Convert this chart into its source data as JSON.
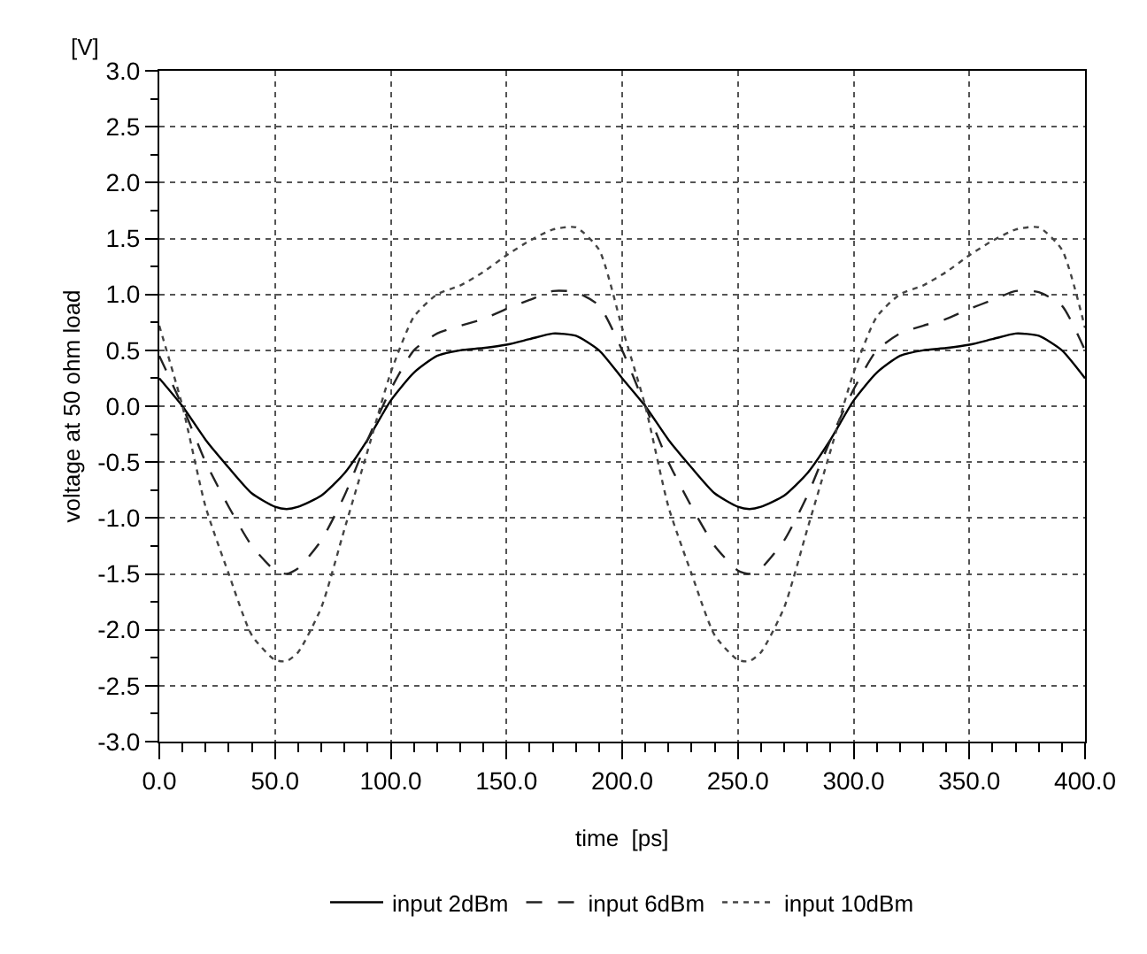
{
  "chart_data": {
    "type": "line",
    "xlabel": "time  [ps]",
    "ylabel": "voltage at 50 ohm load",
    "annotations": [
      "[V]"
    ],
    "x": [
      0,
      10,
      20,
      30,
      40,
      50,
      55,
      60,
      70,
      80,
      90,
      100,
      110,
      120,
      130,
      140,
      150,
      160,
      170,
      180,
      190,
      200,
      210,
      220,
      230,
      240,
      250,
      255,
      260,
      270,
      280,
      290,
      300,
      310,
      320,
      330,
      340,
      350,
      360,
      370,
      380,
      390,
      400
    ],
    "xlim": [
      0,
      400
    ],
    "xticks": [
      {
        "value": 0,
        "label": "0.0"
      },
      {
        "value": 50,
        "label": "50.0"
      },
      {
        "value": 100,
        "label": "100.0"
      },
      {
        "value": 150,
        "label": "150.0"
      },
      {
        "value": 200,
        "label": "200.0"
      },
      {
        "value": 250,
        "label": "250.0"
      },
      {
        "value": 300,
        "label": "300.0"
      },
      {
        "value": 350,
        "label": "350.0"
      },
      {
        "value": 400,
        "label": "400.0"
      }
    ],
    "ylim": [
      -3,
      3
    ],
    "yticks": [
      {
        "value": -3,
        "label": "-3.0"
      },
      {
        "value": -2.5,
        "label": "-2.5"
      },
      {
        "value": -2,
        "label": "-2.0"
      },
      {
        "value": -1.5,
        "label": "-1.5"
      },
      {
        "value": -1,
        "label": "-1.0"
      },
      {
        "value": -0.5,
        "label": "-0.5"
      },
      {
        "value": 0,
        "label": "0.0"
      },
      {
        "value": 0.5,
        "label": "0.5"
      },
      {
        "value": 1,
        "label": "1.0"
      },
      {
        "value": 1.5,
        "label": "1.5"
      },
      {
        "value": 2,
        "label": "2.0"
      },
      {
        "value": 2.5,
        "label": "2.5"
      },
      {
        "value": 3,
        "label": "3.0"
      }
    ],
    "grid": true,
    "legend": "bottom",
    "marker": "none",
    "series": [
      {
        "name": "input 2dBm",
        "color": "#000000",
        "line_style": "solid",
        "values": [
          0.25,
          0.0,
          -0.3,
          -0.55,
          -0.78,
          -0.9,
          -0.92,
          -0.9,
          -0.8,
          -0.6,
          -0.3,
          0.05,
          0.3,
          0.45,
          0.5,
          0.52,
          0.55,
          0.6,
          0.65,
          0.63,
          0.5,
          0.25,
          0.0,
          -0.3,
          -0.55,
          -0.78,
          -0.9,
          -0.92,
          -0.9,
          -0.8,
          -0.6,
          -0.3,
          0.05,
          0.3,
          0.45,
          0.5,
          0.52,
          0.55,
          0.6,
          0.65,
          0.63,
          0.5,
          0.25
        ]
      },
      {
        "name": "input 6dBm",
        "color": "#222222",
        "line_style": "dashed",
        "values": [
          0.45,
          0.0,
          -0.5,
          -0.9,
          -1.25,
          -1.47,
          -1.5,
          -1.45,
          -1.2,
          -0.8,
          -0.3,
          0.15,
          0.5,
          0.65,
          0.72,
          0.78,
          0.87,
          0.95,
          1.03,
          1.02,
          0.9,
          0.5,
          0.0,
          -0.5,
          -0.9,
          -1.25,
          -1.47,
          -1.5,
          -1.45,
          -1.2,
          -0.8,
          -0.3,
          0.15,
          0.5,
          0.65,
          0.72,
          0.78,
          0.87,
          0.95,
          1.03,
          1.02,
          0.9,
          0.5
        ]
      },
      {
        "name": "input 10dBm",
        "color": "#444444",
        "line_style": "dotted",
        "values": [
          0.72,
          0.0,
          -0.9,
          -1.5,
          -2.05,
          -2.27,
          -2.28,
          -2.2,
          -1.8,
          -1.1,
          -0.4,
          0.3,
          0.8,
          1.0,
          1.08,
          1.2,
          1.35,
          1.48,
          1.58,
          1.6,
          1.4,
          0.7,
          0.0,
          -0.9,
          -1.5,
          -2.05,
          -2.27,
          -2.28,
          -2.2,
          -1.8,
          -1.1,
          -0.4,
          0.3,
          0.8,
          1.0,
          1.08,
          1.2,
          1.35,
          1.48,
          1.58,
          1.6,
          1.4,
          0.7
        ]
      }
    ]
  }
}
